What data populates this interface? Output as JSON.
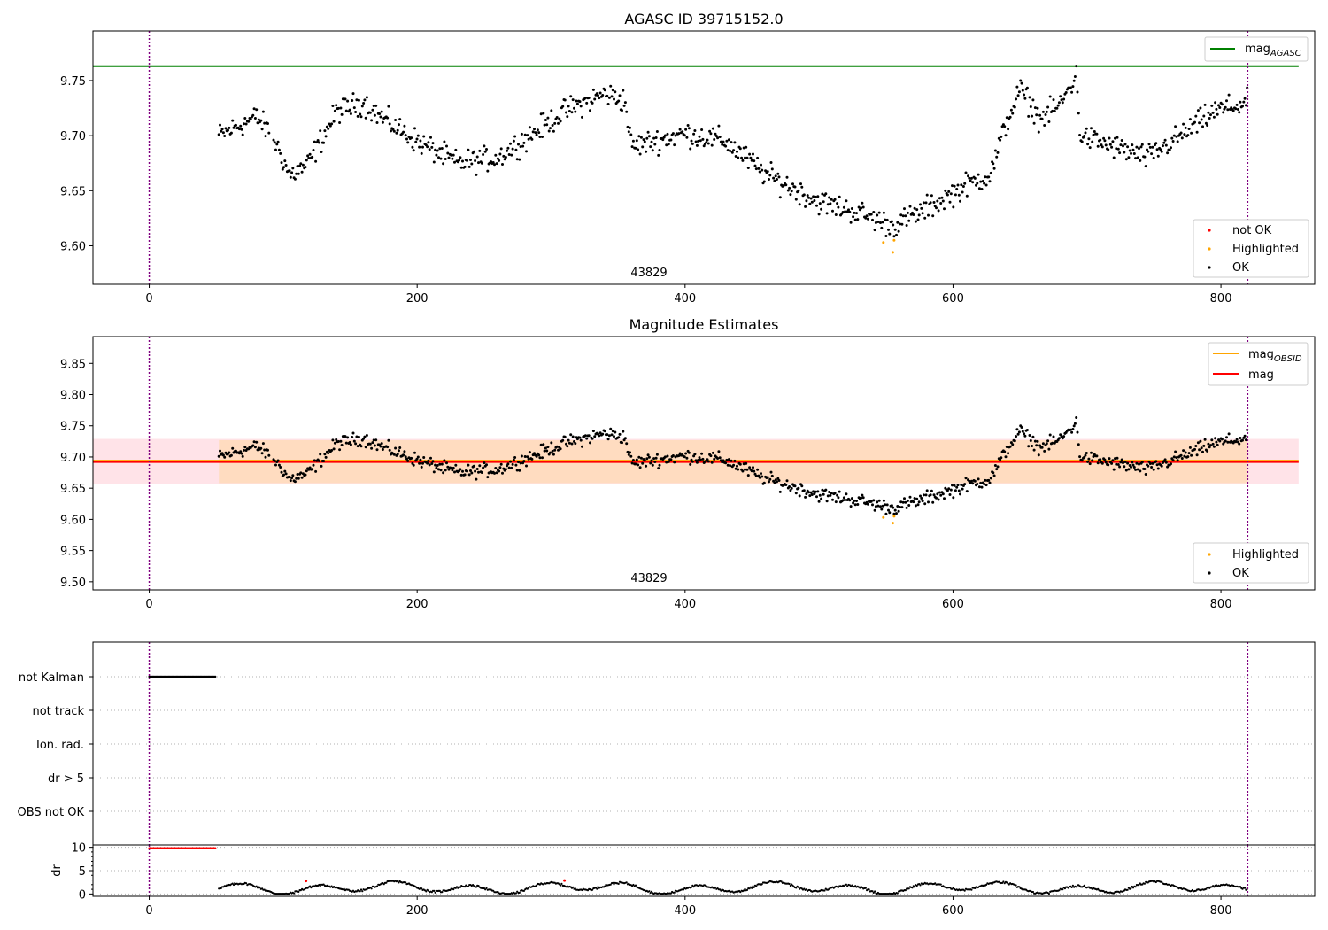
{
  "figure": {
    "background": "#ffffff"
  },
  "colors": {
    "ok": "#000000",
    "not_ok": "#ff0000",
    "highlighted": "#ffa500",
    "mag_agasc": "#008000",
    "mag_obsid": "#ffa500",
    "mag": "#ff0000",
    "band_outer": "#ffc0cb",
    "band_inner": "#ffdab9",
    "vline": "#800080",
    "grid": "#b0b0b0"
  },
  "chart_data": [
    {
      "type": "scatter",
      "title": "AGASC ID 39715152.0",
      "xlim": [
        -42,
        870
      ],
      "ylim": [
        9.565,
        9.795
      ],
      "xticks": [
        0,
        200,
        400,
        600,
        800
      ],
      "yticks": [
        9.6,
        9.65,
        9.7,
        9.75
      ],
      "xtick_labels": [
        "0",
        "200",
        "400",
        "600",
        "800"
      ],
      "ytick_labels": [
        "9.60",
        "9.65",
        "9.70",
        "9.75"
      ],
      "hlines": [
        {
          "name": "mag_AGASC",
          "y": 9.763,
          "color": "#008000"
        }
      ],
      "vlines": [
        0,
        820
      ],
      "annotation": {
        "text": "43829",
        "x": 410
      },
      "legend_lines": [
        {
          "base": "mag",
          "sub": "AGASC",
          "color": "#008000"
        }
      ],
      "legend_markers": [
        {
          "label": "not OK",
          "color": "#ff0000"
        },
        {
          "label": "Highlighted",
          "color": "#ffa500"
        },
        {
          "label": "OK",
          "color": "#000000"
        }
      ],
      "highlighted": [
        [
          548,
          9.603
        ],
        [
          555,
          9.594
        ],
        [
          556,
          9.605
        ]
      ]
    },
    {
      "type": "scatter",
      "title": "Magnitude Estimates",
      "xlim": [
        -42,
        870
      ],
      "ylim": [
        9.487,
        9.893
      ],
      "xticks": [
        0,
        200,
        400,
        600,
        800
      ],
      "yticks": [
        9.5,
        9.55,
        9.6,
        9.65,
        9.7,
        9.75,
        9.8,
        9.85
      ],
      "xtick_labels": [
        "0",
        "200",
        "400",
        "600",
        "800"
      ],
      "ytick_labels": [
        "9.50",
        "9.55",
        "9.60",
        "9.65",
        "9.70",
        "9.75",
        "9.80",
        "9.85"
      ],
      "hlines": [
        {
          "name": "mag_OBSID",
          "y": 9.694,
          "color": "#ffa500"
        },
        {
          "name": "mag",
          "y": 9.692,
          "color": "#ff0000"
        }
      ],
      "bands": [
        {
          "y0": 9.657,
          "y1": 9.729,
          "x0": -42,
          "x1": 858,
          "color": "#ffc0cb"
        },
        {
          "y0": 9.658,
          "y1": 9.727,
          "x0": 52,
          "x1": 820,
          "color": "#ffdab9"
        }
      ],
      "vlines": [
        0,
        820
      ],
      "annotation": {
        "text": "43829",
        "x": 410
      },
      "legend_lines": [
        {
          "base": "mag",
          "sub": "OBSID",
          "color": "#ffa500"
        },
        {
          "base": "mag",
          "sub": "",
          "color": "#ff0000"
        }
      ],
      "legend_markers": [
        {
          "label": "Highlighted",
          "color": "#ffa500"
        },
        {
          "label": "OK",
          "color": "#000000"
        }
      ],
      "highlighted": [
        [
          548,
          9.603
        ],
        [
          555,
          9.594
        ],
        [
          556,
          9.605
        ]
      ]
    },
    {
      "type": "scatter",
      "title": "",
      "xlim": [
        -42,
        870
      ],
      "categories": [
        "not Kalman",
        "not track",
        "Ion. rad.",
        "dr > 5",
        "OBS not OK"
      ],
      "flag_runs": [
        {
          "category": "not Kalman",
          "x0": 0,
          "x1": 50,
          "color": "#000000"
        }
      ],
      "vlines": [
        0,
        820
      ]
    },
    {
      "type": "scatter",
      "title": "",
      "ylabel": "dr",
      "xlim": [
        -42,
        870
      ],
      "ylim": [
        -0.5,
        10.5
      ],
      "xticks": [
        0,
        200,
        400,
        600,
        800
      ],
      "yticks": [
        0,
        5,
        10
      ],
      "xtick_labels": [
        "0",
        "200",
        "400",
        "600",
        "800"
      ],
      "ytick_labels": [
        "0",
        "5",
        "10"
      ],
      "clipped_run": {
        "x0": 0,
        "x1": 50,
        "y": 9.8,
        "color": "#ff0000"
      },
      "red_points": [
        [
          117,
          2.8
        ],
        [
          310,
          2.9
        ]
      ],
      "vlines": [
        0,
        820
      ]
    }
  ]
}
